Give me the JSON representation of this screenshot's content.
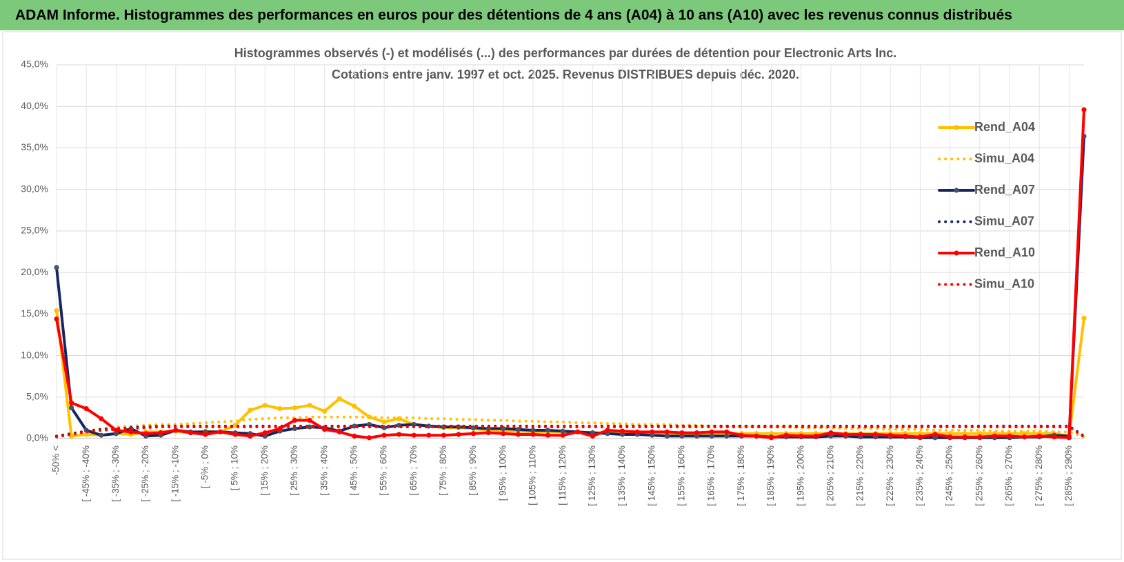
{
  "header": {
    "title": "ADAM Informe. Histogrammes des performances en euros pour des détentions de 4 ans (A04) à 10 ans (A10) avec les revenus connus distribués"
  },
  "chart_data": {
    "type": "line",
    "title": "Histogrammes observés (-) et modélisés (...) des performances par durées de détention pour Electronic Arts Inc.",
    "subtitle": "Cotations entre janv. 1997 et oct. 2025.  Revenus DISTRIBUES depuis déc. 2020.",
    "categories": [
      "-50% <",
      null,
      "[ -45% ; -40%",
      null,
      "[ -35% ; -30%",
      null,
      "[ -25% ; -20%",
      null,
      "[ -15% ; -10%",
      null,
      "[ -5% ; 0%",
      null,
      "[ 5% ; 10%",
      null,
      "[ 15% ; 20%",
      null,
      "[ 25% ; 30%",
      null,
      "[ 35% ; 40%",
      null,
      "[ 45% ; 50%",
      null,
      "[ 55% ; 60%",
      null,
      "[ 65% ; 70%",
      null,
      "[ 75% ; 80%",
      null,
      "[ 85% ; 90%",
      null,
      "[ 95% ; 100%",
      null,
      "[ 105% ; 110%",
      null,
      "[ 115% ; 120%",
      null,
      "[ 125% ; 130%",
      null,
      "[ 135% ; 140%",
      null,
      "[ 145% ; 150%",
      null,
      "[ 155% ; 160%",
      null,
      "[ 165% ; 170%",
      null,
      "[ 175% ; 180%",
      null,
      "[ 185% ; 190%",
      null,
      "[ 195% ; 200%",
      null,
      "[ 205% ; 210%",
      null,
      "[ 215% ; 220%",
      null,
      "[ 225% ; 230%",
      null,
      "[ 235% ; 240%",
      null,
      "[ 245% ; 250%",
      null,
      "[ 255% ; 260%",
      null,
      "[ 265% ; 270%",
      null,
      "[ 275% ; 280%",
      null,
      "[ 285% ; 290%",
      null
    ],
    "series": [
      {
        "name": "Rend_A04",
        "color": "#ffc000",
        "style": "solid",
        "values": [
          15.4,
          0.3,
          0.5,
          0.4,
          0.6,
          0.5,
          0.8,
          0.8,
          0.9,
          0.7,
          0.9,
          0.8,
          1.6,
          3.4,
          4.0,
          3.6,
          3.7,
          4.0,
          3.3,
          4.8,
          3.9,
          2.6,
          2.0,
          2.4,
          1.7,
          1.5,
          1.3,
          1.3,
          1.2,
          1.0,
          0.9,
          0.9,
          0.8,
          0.8,
          0.8,
          0.8,
          0.7,
          0.7,
          0.7,
          0.7,
          0.7,
          0.6,
          0.6,
          0.6,
          0.6,
          0.6,
          0.6,
          0.6,
          0.6,
          0.6,
          0.6,
          0.6,
          0.6,
          0.6,
          0.6,
          0.6,
          0.6,
          0.6,
          0.6,
          0.6,
          0.6,
          0.6,
          0.6,
          0.6,
          0.6,
          0.6,
          0.6,
          0.6,
          0.3,
          14.5
        ]
      },
      {
        "name": "Simu_A04",
        "color": "#ffc000",
        "style": "dotted",
        "values": [
          0.2,
          0.6,
          0.9,
          1.2,
          1.4,
          1.5,
          1.6,
          1.7,
          1.7,
          1.8,
          1.9,
          2.0,
          2.1,
          2.3,
          2.4,
          2.5,
          2.5,
          2.6,
          2.6,
          2.6,
          2.6,
          2.6,
          2.5,
          2.5,
          2.5,
          2.4,
          2.4,
          2.3,
          2.3,
          2.2,
          2.2,
          2.1,
          2.1,
          2.0,
          2.0,
          1.9,
          1.9,
          1.8,
          1.8,
          1.7,
          1.7,
          1.7,
          1.6,
          1.6,
          1.5,
          1.5,
          1.5,
          1.4,
          1.4,
          1.4,
          1.3,
          1.3,
          1.3,
          1.2,
          1.2,
          1.2,
          1.1,
          1.1,
          1.1,
          1.0,
          1.0,
          1.0,
          1.0,
          0.9,
          0.9,
          0.9,
          0.9,
          0.8,
          0.8,
          0.2
        ]
      },
      {
        "name": "Rend_A07",
        "color": "#162660",
        "style": "solid",
        "values": [
          20.6,
          3.7,
          1.0,
          0.4,
          0.6,
          1.2,
          0.3,
          0.4,
          1.0,
          0.8,
          0.8,
          0.8,
          0.7,
          0.6,
          0.3,
          0.9,
          1.2,
          1.4,
          1.3,
          0.9,
          1.5,
          1.7,
          1.3,
          1.6,
          1.7,
          1.5,
          1.4,
          1.4,
          1.3,
          1.2,
          1.2,
          1.1,
          1.0,
          1.0,
          0.9,
          0.8,
          0.7,
          0.6,
          0.5,
          0.5,
          0.4,
          0.3,
          0.3,
          0.3,
          0.3,
          0.3,
          0.3,
          0.3,
          0.2,
          0.2,
          0.2,
          0.2,
          0.3,
          0.3,
          0.2,
          0.2,
          0.2,
          0.2,
          0.1,
          0.1,
          0.1,
          0.1,
          0.1,
          0.1,
          0.1,
          0.2,
          0.2,
          0.4,
          0.3,
          36.4
        ]
      },
      {
        "name": "Simu_A07",
        "color": "#162660",
        "style": "dotted",
        "values": [
          0.3,
          0.6,
          0.9,
          1.1,
          1.2,
          1.3,
          1.4,
          1.5,
          1.5,
          1.5,
          1.5,
          1.5,
          1.5,
          1.5,
          1.5,
          1.5,
          1.5,
          1.5,
          1.5,
          1.5,
          1.5,
          1.5,
          1.5,
          1.5,
          1.5,
          1.5,
          1.5,
          1.5,
          1.5,
          1.5,
          1.5,
          1.5,
          1.5,
          1.5,
          1.5,
          1.5,
          1.5,
          1.5,
          1.5,
          1.5,
          1.5,
          1.5,
          1.5,
          1.5,
          1.5,
          1.5,
          1.5,
          1.5,
          1.5,
          1.5,
          1.5,
          1.5,
          1.5,
          1.5,
          1.5,
          1.5,
          1.5,
          1.5,
          1.5,
          1.5,
          1.5,
          1.5,
          1.5,
          1.5,
          1.5,
          1.5,
          1.5,
          1.5,
          1.5,
          0.3
        ]
      },
      {
        "name": "Rend_A10",
        "color": "#ff0000",
        "style": "solid",
        "values": [
          14.4,
          4.3,
          3.6,
          2.4,
          1.0,
          0.8,
          0.6,
          0.7,
          1.0,
          0.7,
          0.5,
          0.8,
          0.5,
          0.3,
          0.7,
          1.2,
          2.2,
          2.2,
          1.1,
          0.8,
          0.3,
          0.1,
          0.4,
          0.5,
          0.4,
          0.4,
          0.4,
          0.5,
          0.6,
          0.7,
          0.6,
          0.5,
          0.5,
          0.4,
          0.4,
          0.8,
          0.3,
          1.0,
          0.9,
          0.8,
          0.8,
          0.8,
          0.7,
          0.7,
          0.8,
          0.8,
          0.4,
          0.3,
          0.1,
          0.4,
          0.3,
          0.3,
          0.7,
          0.5,
          0.5,
          0.5,
          0.4,
          0.3,
          0.2,
          0.5,
          0.2,
          0.2,
          0.2,
          0.3,
          0.3,
          0.2,
          0.3,
          0.2,
          0.1,
          39.6
        ]
      },
      {
        "name": "Simu_A10",
        "color": "#ff0000",
        "style": "dotted",
        "values": [
          0.2,
          0.5,
          0.8,
          1.0,
          1.1,
          1.2,
          1.3,
          1.4,
          1.4,
          1.4,
          1.4,
          1.4,
          1.4,
          1.4,
          1.4,
          1.4,
          1.4,
          1.4,
          1.4,
          1.4,
          1.4,
          1.4,
          1.4,
          1.4,
          1.4,
          1.4,
          1.4,
          1.4,
          1.4,
          1.4,
          1.4,
          1.4,
          1.4,
          1.4,
          1.4,
          1.4,
          1.4,
          1.4,
          1.4,
          1.4,
          1.4,
          1.4,
          1.4,
          1.4,
          1.4,
          1.4,
          1.4,
          1.4,
          1.4,
          1.4,
          1.4,
          1.4,
          1.4,
          1.4,
          1.4,
          1.4,
          1.4,
          1.4,
          1.4,
          1.4,
          1.4,
          1.4,
          1.4,
          1.4,
          1.4,
          1.4,
          1.4,
          1.4,
          1.4,
          0.2
        ]
      }
    ],
    "ylim": [
      0,
      45
    ],
    "yticks": [
      {
        "value": 0,
        "label": "0,0%"
      },
      {
        "value": 5,
        "label": "5,0%"
      },
      {
        "value": 10,
        "label": "10,0%"
      },
      {
        "value": 15,
        "label": "15,0%"
      },
      {
        "value": 20,
        "label": "20,0%"
      },
      {
        "value": 25,
        "label": "25,0%"
      },
      {
        "value": 30,
        "label": "30,0%"
      },
      {
        "value": 35,
        "label": "35,0%"
      },
      {
        "value": 40,
        "label": "40,0%"
      },
      {
        "value": 45,
        "label": "45,0%"
      }
    ],
    "grid": true,
    "legend": "right"
  }
}
